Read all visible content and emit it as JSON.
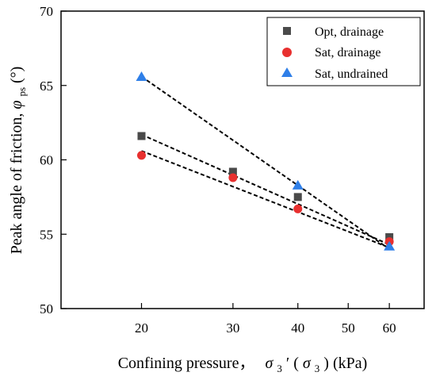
{
  "chart_data": {
    "type": "scatter",
    "xlabel_prefix": "Confining pressure，",
    "xlabel_var": "σ",
    "xlabel_sub": "3",
    "xlabel_prime": "′",
    "xlabel_paren_var": "σ",
    "xlabel_paren_sub": "3",
    "xlabel_unit": "(kPa)",
    "ylabel_prefix": "Peak angle of friction,",
    "ylabel_var": "φ",
    "ylabel_sub": "ps",
    "ylabel_unit": "(°)",
    "x_scale": "log",
    "xlim": [
      14,
      70
    ],
    "ylim": [
      50,
      70
    ],
    "xticks": [
      20,
      30,
      40,
      50,
      60
    ],
    "yticks": [
      50,
      55,
      60,
      65,
      70
    ],
    "grid": false,
    "legend_position": "top-right",
    "series": [
      {
        "name": "Opt, drainage",
        "marker": "square",
        "color": "#4a4a4a",
        "x": [
          20,
          30,
          40,
          60
        ],
        "y": [
          61.6,
          59.2,
          57.5,
          54.8
        ],
        "trend_start": [
          20,
          61.7
        ],
        "trend_end": [
          60,
          54.3
        ]
      },
      {
        "name": "Sat, drainage",
        "marker": "circle",
        "color": "#e8302f",
        "x": [
          20,
          30,
          40,
          60
        ],
        "y": [
          60.3,
          58.8,
          56.7,
          54.5
        ],
        "trend_start": [
          20,
          60.6
        ],
        "trend_end": [
          60,
          54.1
        ]
      },
      {
        "name": "Sat, undrained",
        "marker": "triangle",
        "color": "#2f7fe8",
        "x": [
          20,
          40,
          60
        ],
        "y": [
          65.6,
          58.3,
          54.2
        ],
        "trend_start": [
          20,
          65.6
        ],
        "trend_end": [
          60,
          54.0
        ]
      }
    ]
  }
}
